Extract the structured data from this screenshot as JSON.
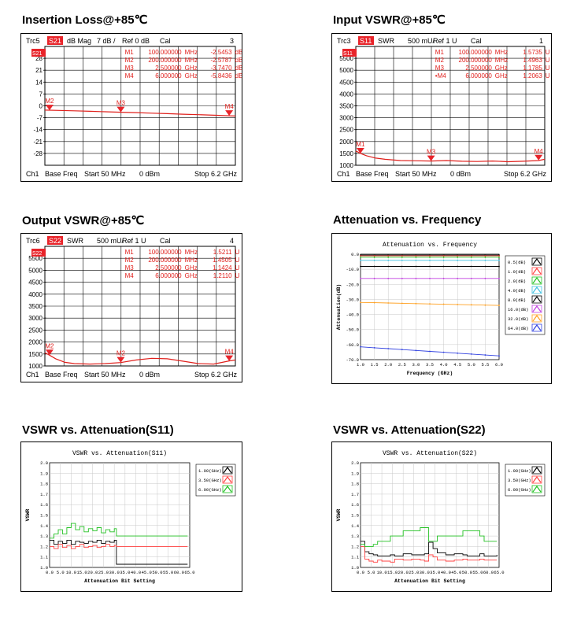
{
  "headings": [
    "Insertion Loss@+85℃",
    "Input VSWR@+85℃",
    "Output VSWR@+85℃",
    "Attenuation vs. Frequency",
    "VSWR vs. Attenuation(S11)",
    "VSWR vs. Attenuation(S22)"
  ],
  "colors": {
    "trace_red": "#e0201c",
    "marker_red": "#e8242a",
    "grid": "#000000"
  },
  "chart_data": [
    {
      "id": "insertion_loss",
      "type": "line",
      "header": {
        "trc": "Trc5",
        "param": "S21",
        "format": "dB Mag",
        "scale": "7 dB /",
        "ref": "Ref 0 dB",
        "cal": "Cal",
        "num": "3"
      },
      "active_marker": "S21",
      "footer": {
        "ch": "Ch1",
        "base": "Base Freq",
        "start": "Start 50 MHz",
        "power": "0 dBm",
        "stop": "Stop 6.2 GHz"
      },
      "yticks": [
        "28",
        "21",
        "14",
        "7",
        "0",
        "-7",
        "-14",
        "-21",
        "-28"
      ],
      "ylim": [
        -35,
        35
      ],
      "xlim": [
        0.05,
        6.2
      ],
      "markers": [
        {
          "name": "M1",
          "freq": "100.000000",
          "unit": "MHz",
          "value": "-2.5453",
          "vunit": "dB",
          "x": 0.1,
          "y": -2.5453
        },
        {
          "name": "M2",
          "freq": "200.000000",
          "unit": "MHz",
          "value": "-2.5787",
          "vunit": "dB",
          "x": 0.2,
          "y": -2.5787
        },
        {
          "name": "M3",
          "freq": "2.500000",
          "unit": "GHz",
          "value": "-3.7470",
          "vunit": "dB",
          "x": 2.5,
          "y": -3.747
        },
        {
          "name": "M4",
          "freq": "6.000000",
          "unit": "GHz",
          "value": "-5.8436",
          "vunit": "dB",
          "x": 6.0,
          "y": -5.8436
        }
      ],
      "trace": {
        "x": [
          0.05,
          0.5,
          1.0,
          1.5,
          2.0,
          2.5,
          3.0,
          3.5,
          4.0,
          4.5,
          5.0,
          5.5,
          6.0,
          6.2
        ],
        "y": [
          -2.5,
          -2.7,
          -2.9,
          -3.2,
          -3.5,
          -3.75,
          -4.0,
          -4.3,
          -4.6,
          -4.9,
          -5.2,
          -5.5,
          -5.85,
          -6.0
        ]
      },
      "marker_plot_labels": [
        "M2",
        "M3",
        "M4"
      ]
    },
    {
      "id": "input_vswr",
      "type": "line",
      "header": {
        "trc": "Trc3",
        "param": "S11",
        "format": "SWR",
        "scale": "500 mU/",
        "ref": "Ref 1 U",
        "cal": "Cal",
        "num": "1"
      },
      "active_marker": "S11",
      "footer": {
        "ch": "Ch1",
        "base": "Base Freq",
        "start": "Start 50 MHz",
        "power": "0 dBm",
        "stop": "Stop 6.2 GHz"
      },
      "yticks": [
        "5500",
        "5000",
        "4500",
        "4000",
        "3500",
        "3000",
        "2500",
        "2000",
        "1500",
        "1000"
      ],
      "ylim": [
        1.0,
        6.0
      ],
      "xlim": [
        0.05,
        6.2
      ],
      "markers": [
        {
          "name": "M1",
          "freq": "100.000000",
          "unit": "MHz",
          "value": "1.5735",
          "vunit": "U",
          "x": 0.1,
          "y": 1.5735
        },
        {
          "name": "M2",
          "freq": "200.000000",
          "unit": "MHz",
          "value": "1.4963",
          "vunit": "U",
          "x": 0.2,
          "y": 1.4963
        },
        {
          "name": "M3",
          "freq": "2.500000",
          "unit": "GHz",
          "value": "1.1785",
          "vunit": "U",
          "x": 2.5,
          "y": 1.1785
        },
        {
          "name": "•M4",
          "freq": "6.000000",
          "unit": "GHz",
          "value": "1.2063",
          "vunit": "U",
          "x": 6.0,
          "y": 1.2063
        }
      ],
      "trace": {
        "x": [
          0.05,
          0.1,
          0.2,
          0.4,
          0.7,
          1.0,
          1.5,
          2.0,
          2.5,
          3.0,
          3.5,
          4.0,
          4.5,
          5.0,
          5.5,
          6.0,
          6.2
        ],
        "y": [
          1.6,
          1.57,
          1.5,
          1.4,
          1.3,
          1.25,
          1.2,
          1.19,
          1.18,
          1.2,
          1.17,
          1.16,
          1.18,
          1.15,
          1.17,
          1.2,
          1.25
        ]
      },
      "marker_plot_labels": [
        "M1",
        "M3",
        "M4"
      ]
    },
    {
      "id": "output_vswr",
      "type": "line",
      "header": {
        "trc": "Trc6",
        "param": "S22",
        "format": "SWR",
        "scale": "500 mU/",
        "ref": "Ref 1 U",
        "cal": "Cal",
        "num": "4"
      },
      "active_marker": "S22",
      "footer": {
        "ch": "Ch1",
        "base": "Base Freq",
        "start": "Start 50 MHz",
        "power": "0 dBm",
        "stop": "Stop 6.2 GHz"
      },
      "yticks": [
        "5500",
        "5000",
        "4500",
        "4000",
        "3500",
        "3000",
        "2500",
        "2000",
        "1500",
        "1000"
      ],
      "ylim": [
        1.0,
        6.0
      ],
      "xlim": [
        0.05,
        6.2
      ],
      "markers": [
        {
          "name": "M1",
          "freq": "100.000000",
          "unit": "MHz",
          "value": "1.5211",
          "vunit": "U",
          "x": 0.1,
          "y": 1.5211
        },
        {
          "name": "M2",
          "freq": "200.000000",
          "unit": "MHz",
          "value": "1.4505",
          "vunit": "U",
          "x": 0.2,
          "y": 1.4505
        },
        {
          "name": "M3",
          "freq": "2.500000",
          "unit": "GHz",
          "value": "1.1424",
          "vunit": "U",
          "x": 2.5,
          "y": 1.1424
        },
        {
          "name": "M4",
          "freq": "6.000000",
          "unit": "GHz",
          "value": "1.2110",
          "vunit": "U",
          "x": 6.0,
          "y": 1.211
        }
      ],
      "trace": {
        "x": [
          0.05,
          0.1,
          0.2,
          0.4,
          0.7,
          1.0,
          1.5,
          2.0,
          2.5,
          3.0,
          3.5,
          4.0,
          4.5,
          5.0,
          5.5,
          6.0,
          6.2
        ],
        "y": [
          1.55,
          1.52,
          1.45,
          1.3,
          1.15,
          1.1,
          1.08,
          1.1,
          1.14,
          1.25,
          1.32,
          1.3,
          1.2,
          1.1,
          1.08,
          1.21,
          1.25
        ]
      },
      "marker_plot_labels": [
        "M2",
        "M2",
        "M4"
      ]
    },
    {
      "id": "attenuation_vs_frequency",
      "type": "line",
      "title": "Attenuation vs. Frequency",
      "xlabel": "Frequency (GHz)",
      "ylabel": "Attenuation(dB)",
      "xlim": [
        1.0,
        6.0
      ],
      "ylim": [
        -70.0,
        0.0
      ],
      "xticks": [
        "1.0",
        "1.5",
        "2.0",
        "2.5",
        "3.0",
        "3.5",
        "4.0",
        "4.5",
        "5.0",
        "5.5",
        "6.0"
      ],
      "yticks": [
        "0.0",
        "-10.0",
        "-20.0",
        "-30.0",
        "-40.0",
        "-50.0",
        "-60.0",
        "-70.0"
      ],
      "x": [
        1.0,
        1.5,
        2.0,
        2.5,
        3.0,
        3.5,
        4.0,
        4.5,
        5.0,
        5.5,
        6.0
      ],
      "series": [
        {
          "name": "0.5(dB)",
          "color": "#000000",
          "values": [
            -0.6,
            -0.6,
            -0.6,
            -0.6,
            -0.6,
            -0.6,
            -0.6,
            -0.6,
            -0.6,
            -0.6,
            -0.6
          ]
        },
        {
          "name": "1.0(dB)",
          "color": "#ff4040",
          "values": [
            -1.1,
            -1.1,
            -1.1,
            -1.1,
            -1.1,
            -1.1,
            -1.1,
            -1.1,
            -1.1,
            -1.1,
            -1.1
          ]
        },
        {
          "name": "2.0(dB)",
          "color": "#20c020",
          "values": [
            -2.0,
            -2.0,
            -2.0,
            -2.0,
            -2.0,
            -2.0,
            -2.0,
            -2.0,
            -2.0,
            -2.0,
            -2.0
          ]
        },
        {
          "name": "4.0(dB)",
          "color": "#40c0e0",
          "values": [
            -4.1,
            -4.1,
            -4.1,
            -4.1,
            -4.1,
            -4.1,
            -4.1,
            -4.1,
            -4.1,
            -4.1,
            -4.1
          ]
        },
        {
          "name": "8.0(dB)",
          "color": "#000000",
          "values": [
            -8.1,
            -8.1,
            -8.1,
            -8.1,
            -8.1,
            -8.1,
            -8.1,
            -8.1,
            -8.1,
            -8.1,
            -8.1
          ]
        },
        {
          "name": "16.0(dB)",
          "color": "#c040e0",
          "values": [
            -16.1,
            -16.1,
            -16.1,
            -16.1,
            -16.1,
            -16.1,
            -16.1,
            -16.1,
            -16.1,
            -16.1,
            -16.1
          ]
        },
        {
          "name": "32.0(dB)",
          "color": "#ffa020",
          "values": [
            -32.0,
            -32.2,
            -32.4,
            -32.6,
            -32.8,
            -33.0,
            -33.2,
            -33.4,
            -33.6,
            -33.8,
            -34.0
          ]
        },
        {
          "name": "64.0(dB)",
          "color": "#3040e0",
          "values": [
            -61.5,
            -62.1,
            -62.7,
            -63.3,
            -63.9,
            -64.5,
            -65.1,
            -65.7,
            -66.3,
            -66.9,
            -67.5
          ]
        }
      ]
    },
    {
      "id": "vswr_vs_att_s11",
      "type": "line",
      "title": "VSWR vs. Attenuation(S11)",
      "xlabel": "Attenuation Bit Setting",
      "ylabel": "VSWR",
      "xlim": [
        0.0,
        65.0
      ],
      "ylim": [
        1.0,
        2.0
      ],
      "xticks": [
        "0.0",
        "5.0",
        "10.0",
        "15.0",
        "20.0",
        "25.0",
        "30.0",
        "35.0",
        "40.0",
        "45.0",
        "50.0",
        "55.0",
        "60.0",
        "65.0"
      ],
      "yticks": [
        "2.0",
        "1.9",
        "1.8",
        "1.7",
        "1.6",
        "1.5",
        "1.4",
        "1.3",
        "1.2",
        "1.1",
        "1.0"
      ],
      "x": [
        0,
        2,
        4,
        6,
        8,
        10,
        12,
        14,
        16,
        18,
        20,
        22,
        24,
        26,
        28,
        30,
        31,
        32,
        40,
        50,
        60,
        64
      ],
      "series": [
        {
          "name": "1.00(GHz)",
          "color": "#000000",
          "values": [
            1.26,
            1.22,
            1.25,
            1.23,
            1.26,
            1.22,
            1.25,
            1.24,
            1.23,
            1.25,
            1.24,
            1.26,
            1.23,
            1.25,
            1.24,
            1.26,
            1.03,
            1.03,
            1.03,
            1.03,
            1.03,
            1.03
          ]
        },
        {
          "name": "3.50(GHz)",
          "color": "#ff4040",
          "values": [
            1.2,
            1.18,
            1.22,
            1.19,
            1.21,
            1.18,
            1.2,
            1.22,
            1.19,
            1.2,
            1.21,
            1.19,
            1.2,
            1.22,
            1.2,
            1.21,
            1.2,
            1.2,
            1.2,
            1.2,
            1.2,
            1.2
          ]
        },
        {
          "name": "6.00(GHz)",
          "color": "#20c020",
          "values": [
            1.28,
            1.32,
            1.36,
            1.32,
            1.38,
            1.42,
            1.36,
            1.39,
            1.34,
            1.37,
            1.35,
            1.38,
            1.33,
            1.36,
            1.34,
            1.37,
            1.3,
            1.3,
            1.3,
            1.3,
            1.3,
            1.3
          ]
        }
      ]
    },
    {
      "id": "vswr_vs_att_s22",
      "type": "line",
      "title": "VSWR vs. Attenuation(S22)",
      "xlabel": "Attenuation Bit Setting",
      "ylabel": "VSWR",
      "xlim": [
        0.0,
        65.0
      ],
      "ylim": [
        1.0,
        2.0
      ],
      "xticks": [
        "0.0",
        "5.0",
        "10.0",
        "15.0",
        "20.0",
        "25.0",
        "30.0",
        "35.0",
        "40.0",
        "45.0",
        "50.0",
        "55.0",
        "60.0",
        "65.0"
      ],
      "yticks": [
        "2.0",
        "1.9",
        "1.8",
        "1.7",
        "1.6",
        "1.5",
        "1.4",
        "1.3",
        "1.2",
        "1.1",
        "1.0"
      ],
      "x": [
        0,
        2,
        4,
        6,
        8,
        10,
        14,
        16,
        20,
        24,
        28,
        30,
        32,
        34,
        36,
        40,
        44,
        48,
        50,
        56,
        58,
        64
      ],
      "series": [
        {
          "name": "1.00(GHz)",
          "color": "#000000",
          "values": [
            1.25,
            1.15,
            1.13,
            1.12,
            1.11,
            1.11,
            1.12,
            1.11,
            1.13,
            1.12,
            1.12,
            1.13,
            1.24,
            1.18,
            1.14,
            1.12,
            1.13,
            1.12,
            1.11,
            1.13,
            1.11,
            1.12
          ]
        },
        {
          "name": "3.50(GHz)",
          "color": "#ff4040",
          "values": [
            1.2,
            1.08,
            1.06,
            1.05,
            1.07,
            1.06,
            1.05,
            1.08,
            1.07,
            1.08,
            1.07,
            1.06,
            1.12,
            1.1,
            1.07,
            1.06,
            1.07,
            1.08,
            1.07,
            1.08,
            1.07,
            1.07
          ]
        },
        {
          "name": "6.00(GHz)",
          "color": "#20c020",
          "values": [
            1.22,
            1.2,
            1.2,
            1.22,
            1.25,
            1.25,
            1.3,
            1.3,
            1.35,
            1.35,
            1.38,
            1.38,
            1.25,
            1.25,
            1.3,
            1.3,
            1.3,
            1.35,
            1.35,
            1.3,
            1.25,
            1.25
          ]
        }
      ]
    }
  ]
}
